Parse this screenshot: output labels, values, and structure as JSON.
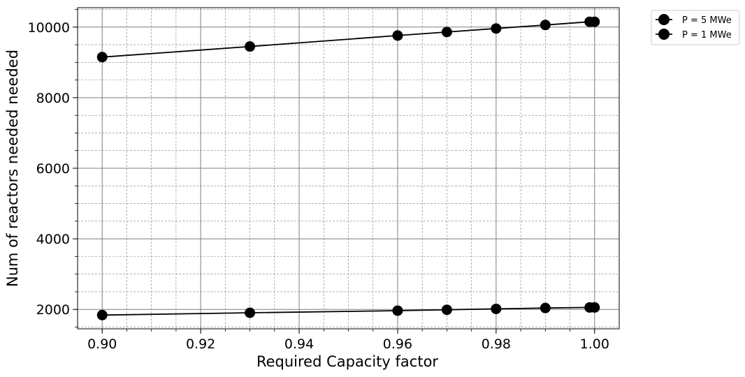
{
  "chart_data": {
    "type": "line",
    "xlabel": "Required Capacity factor",
    "ylabel": "Num of reactors needed needed",
    "xlim": [
      0.895,
      1.005
    ],
    "ylim": [
      1450,
      10550
    ],
    "x_ticks": [
      0.9,
      0.92,
      0.94,
      0.96,
      0.98,
      1.0
    ],
    "x_tick_labels": [
      "0.90",
      "0.92",
      "0.94",
      "0.96",
      "0.98",
      "1.00"
    ],
    "y_ticks": [
      2000,
      4000,
      6000,
      8000,
      10000
    ],
    "y_tick_labels": [
      "2000",
      "4000",
      "6000",
      "8000",
      "10000"
    ],
    "grid": "major and minor",
    "legend_position": "outside-top-right",
    "series": [
      {
        "name": "P = 5 MWe",
        "color": "#000000",
        "marker": "circle",
        "x": [
          0.9,
          0.93,
          0.96,
          0.97,
          0.98,
          0.99,
          0.999,
          1.0
        ],
        "y": [
          9150,
          9450,
          9760,
          9860,
          9960,
          10060,
          10150,
          10150
        ]
      },
      {
        "name": "P = 1 MWe",
        "color": "#000000",
        "marker": "circle",
        "x": [
          0.9,
          0.93,
          0.96,
          0.97,
          0.98,
          0.99,
          0.999,
          1.0
        ],
        "y": [
          1840,
          1905,
          1965,
          1990,
          2015,
          2040,
          2055,
          2055
        ]
      }
    ]
  }
}
